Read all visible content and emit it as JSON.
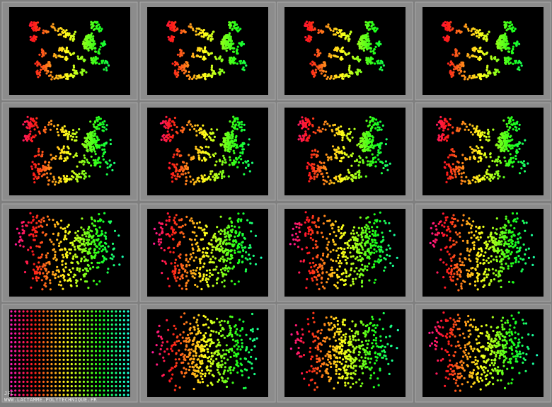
{
  "footer": {
    "author": "JFC",
    "url": "WWW.LACTAMME.POLYTECHNIQUE.FR"
  }
}
